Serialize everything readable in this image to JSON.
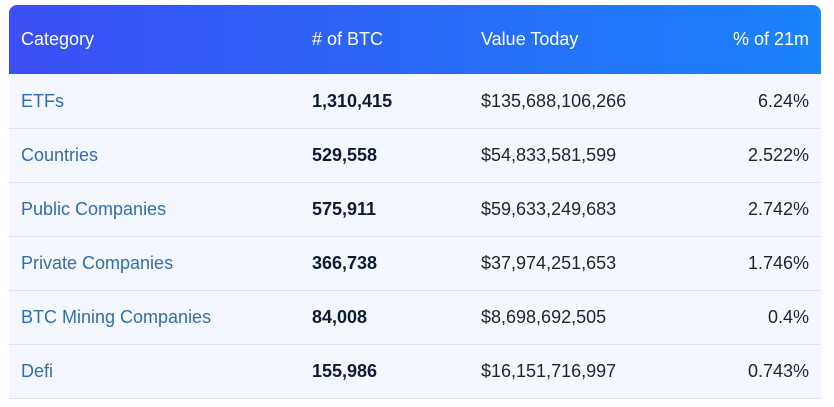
{
  "table": {
    "headers": {
      "category": "Category",
      "btc": "# of BTC",
      "value": "Value Today",
      "percent": "% of 21m"
    },
    "rows": [
      {
        "category": "ETFs",
        "btc": "1,310,415",
        "value": "$135,688,106,266",
        "percent": "6.24%"
      },
      {
        "category": "Countries",
        "btc": "529,558",
        "value": "$54,833,581,599",
        "percent": "2.522%"
      },
      {
        "category": "Public Companies",
        "btc": "575,911",
        "value": "$59,633,249,683",
        "percent": "2.742%"
      },
      {
        "category": "Private Companies",
        "btc": "366,738",
        "value": "$37,974,251,653",
        "percent": "1.746%"
      },
      {
        "category": "BTC Mining Companies",
        "btc": "84,008",
        "value": "$8,698,692,505",
        "percent": "0.4%"
      },
      {
        "category": "Defi",
        "btc": "155,986",
        "value": "$16,151,716,997",
        "percent": "0.743%"
      }
    ]
  },
  "colors": {
    "header_gradient_start": "#3b4ff5",
    "header_gradient_end": "#1a84fb",
    "link": "#2f6fad",
    "row_bg": "#f4f7fd"
  }
}
